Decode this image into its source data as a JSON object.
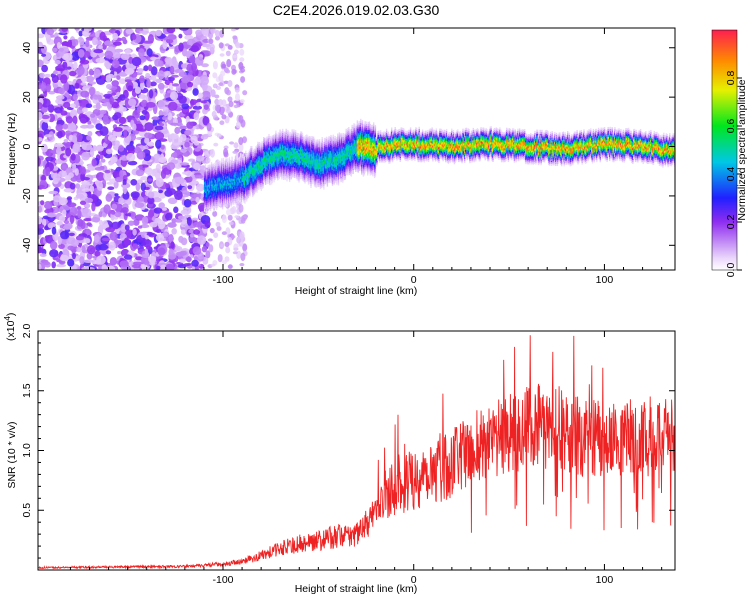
{
  "chart_data": [
    {
      "type": "heatmap",
      "title": "C2E4.2026.019.02.03.G30",
      "xlabel": "Height of straight line (km)",
      "ylabel": "Frequency (Hz)",
      "xlim": [
        -197,
        137
      ],
      "ylim": [
        -50,
        48
      ],
      "x_ticks": [
        -100,
        0,
        100
      ],
      "x_tick_labels": [
        "-100",
        "0",
        "100"
      ],
      "y_ticks": [
        -40,
        -20,
        0,
        20,
        40
      ],
      "y_tick_labels": [
        "-40",
        "-20",
        "0",
        "20",
        "40"
      ],
      "colorbar": {
        "label": "Normalized spectral amplitude",
        "range": [
          0,
          1
        ],
        "ticks": [
          0.0,
          0.2,
          0.4,
          0.6,
          0.8
        ],
        "tick_labels": [
          "0.0",
          "0.2",
          "0.4",
          "0.6",
          "0.8"
        ]
      },
      "ridge_frequency_track": {
        "x": [
          -107,
          -100,
          -90,
          -80,
          -70,
          -60,
          -50,
          -40,
          -30,
          -20,
          -10,
          0,
          20,
          40,
          60,
          80,
          100,
          120,
          137
        ],
        "y": [
          -17,
          -15,
          -13,
          -7,
          -3,
          -4,
          -7,
          -5,
          0,
          -1,
          1,
          1,
          0,
          1,
          0,
          -1,
          1,
          0,
          -2
        ]
      }
    },
    {
      "type": "line",
      "xlabel": "Height of straight line (km)",
      "ylabel": "SNR (10 * v/v)",
      "multiplier_label": "(x10",
      "multiplier_exponent": "4",
      "multiplier_close": ")",
      "xlim": [
        -197,
        137
      ],
      "ylim": [
        0,
        2.0
      ],
      "x_ticks": [
        -100,
        0,
        100
      ],
      "x_tick_labels": [
        "-100",
        "0",
        "100"
      ],
      "y_ticks": [
        0.5,
        1.0,
        1.5,
        2.0
      ],
      "y_tick_labels": [
        "0.5",
        "1.0",
        "1.5",
        "2.0"
      ],
      "series": [
        {
          "name": "SNR",
          "color": "#ee2222",
          "envelope_x": [
            -197,
            -120,
            -100,
            -90,
            -80,
            -70,
            -60,
            -50,
            -40,
            -30,
            -20,
            -15,
            -10,
            0,
            10,
            20,
            30,
            40,
            50,
            60,
            70,
            80,
            90,
            100,
            110,
            120,
            130,
            137
          ],
          "envelope_y": [
            0.02,
            0.03,
            0.05,
            0.07,
            0.12,
            0.18,
            0.22,
            0.25,
            0.28,
            0.3,
            0.45,
            0.65,
            0.7,
            0.75,
            0.85,
            0.9,
            1.0,
            1.1,
            1.15,
            1.2,
            1.2,
            1.15,
            1.1,
            1.1,
            1.1,
            1.1,
            1.15,
            1.1
          ]
        }
      ]
    }
  ]
}
